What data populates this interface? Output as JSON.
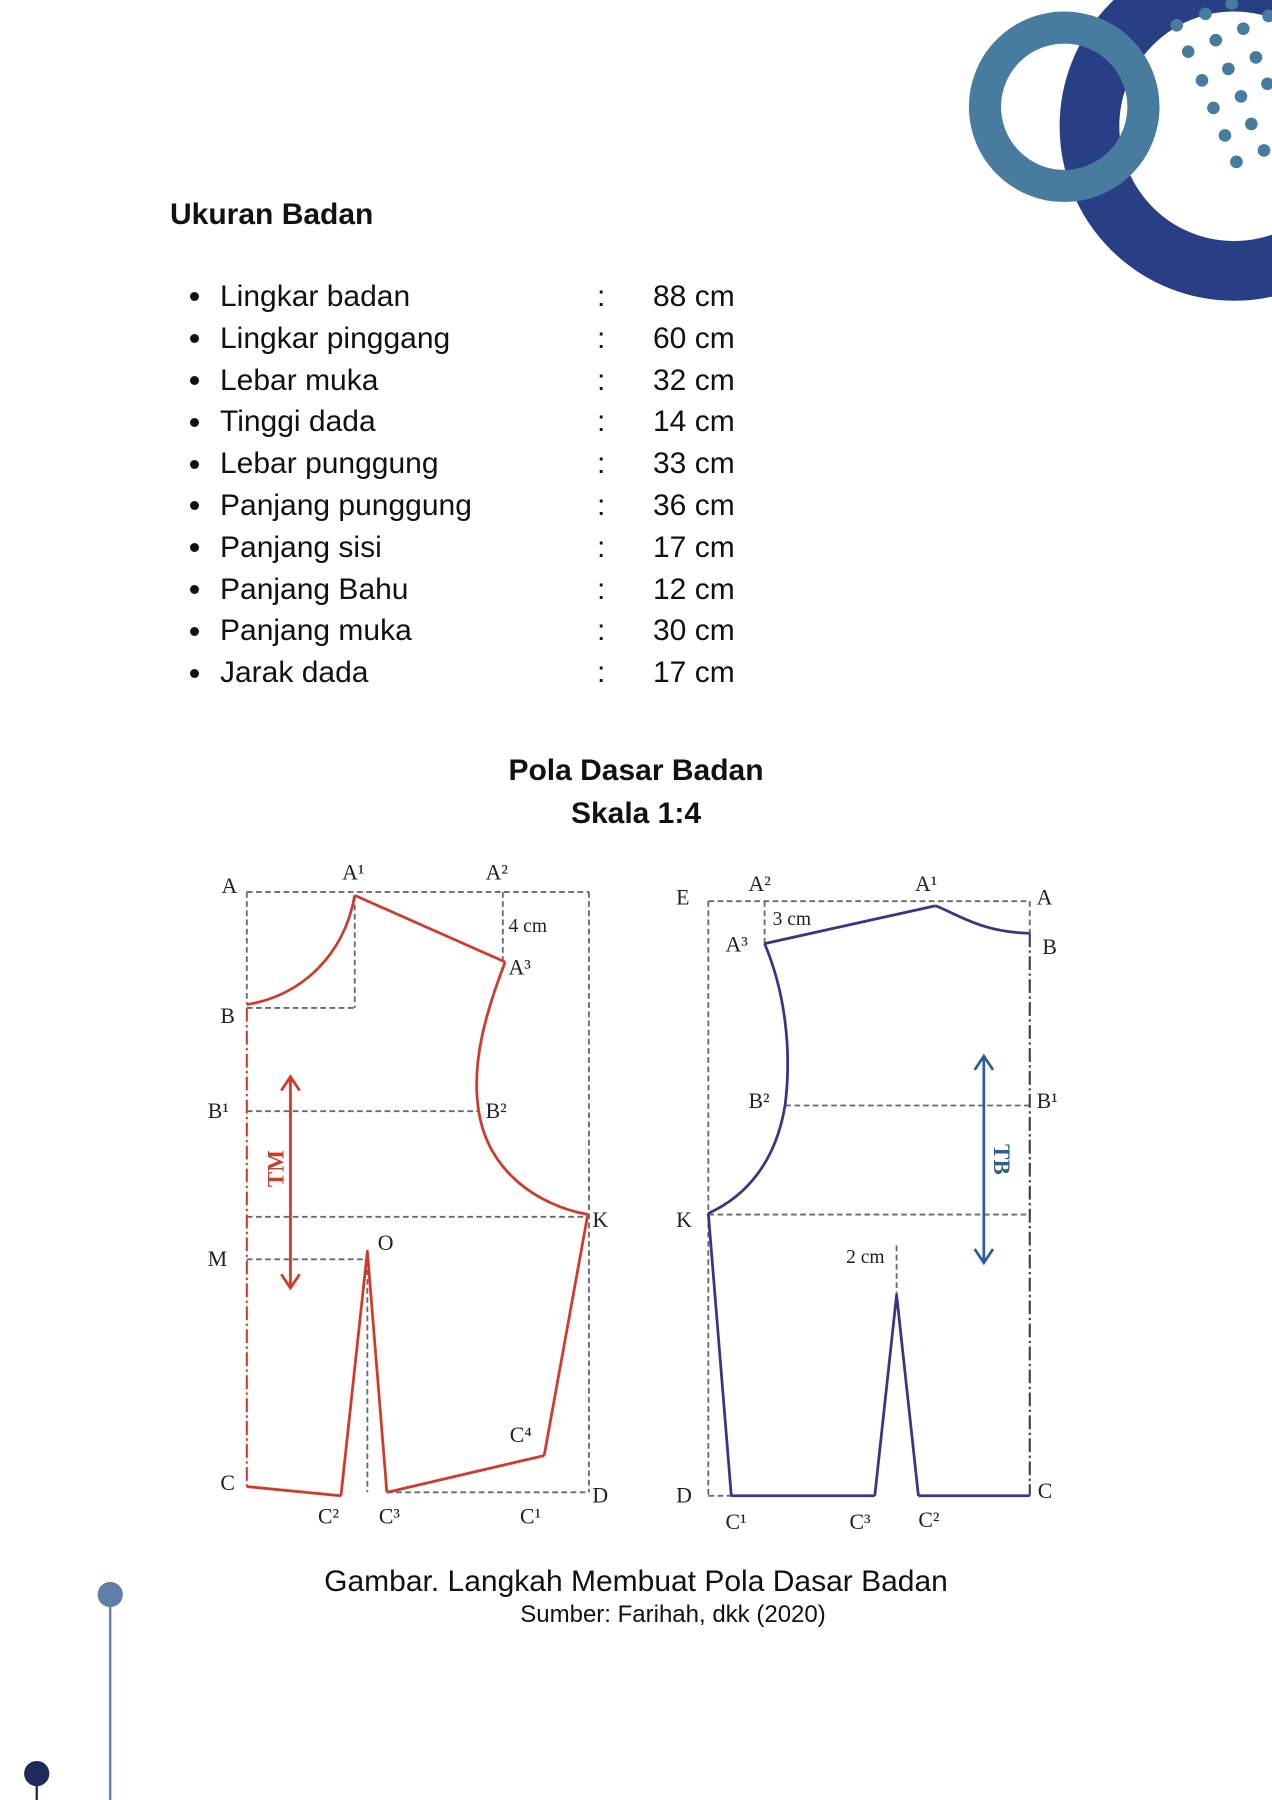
{
  "body_measurements": {
    "title": "Ukuran Badan",
    "separator": ":",
    "items": [
      {
        "label": "Lingkar badan",
        "value": "88 cm"
      },
      {
        "label": "Lingkar pinggang",
        "value": "60 cm"
      },
      {
        "label": "Lebar muka",
        "value": "32 cm"
      },
      {
        "label": "Tinggi dada",
        "value": "14 cm"
      },
      {
        "label": "Lebar punggung",
        "value": "33 cm"
      },
      {
        "label": "Panjang punggung",
        "value": "36 cm"
      },
      {
        "label": "Panjang sisi",
        "value": "17 cm"
      },
      {
        "label": "Panjang Bahu",
        "value": "12 cm"
      },
      {
        "label": "Panjang muka",
        "value": "30 cm"
      },
      {
        "label": "Jarak dada",
        "value": "17 cm"
      }
    ]
  },
  "figure": {
    "title": "Pola Dasar Badan",
    "scale": "Skala 1:4",
    "caption": "Gambar. Langkah Membuat Pola Dasar Badan",
    "source": "Sumber: Farihah, dkk (2020)",
    "front_pattern": {
      "points": {
        "A": "A",
        "A1": "A¹",
        "A2": "A²",
        "A3": "A³",
        "B": "B",
        "B1": "B¹",
        "B2": "B²",
        "K": "K",
        "M": "M",
        "O": "O",
        "C": "C",
        "C1": "C¹",
        "C2": "C²",
        "C3": "C³",
        "C4": "C⁴",
        "D": "D"
      },
      "offset_label": "4 cm",
      "arrow_label": "TM"
    },
    "back_pattern": {
      "points": {
        "E": "E",
        "A": "A",
        "A1": "A¹",
        "A2": "A²",
        "A3": "A³",
        "B": "B",
        "B1": "B¹",
        "B2": "B²",
        "K": "K",
        "D": "D",
        "C": "C",
        "C1": "C¹",
        "C2": "C²",
        "C3": "C³"
      },
      "offset_label": "3 cm",
      "dart_label": "2 cm",
      "arrow_label": "TB"
    }
  },
  "colors": {
    "front_pattern": "#cf3a2b",
    "back_pattern": "#3b3383",
    "tb_arrow": "#2d5e97",
    "accent_teal": "#487c9f",
    "accent_navy": "#283f86"
  }
}
